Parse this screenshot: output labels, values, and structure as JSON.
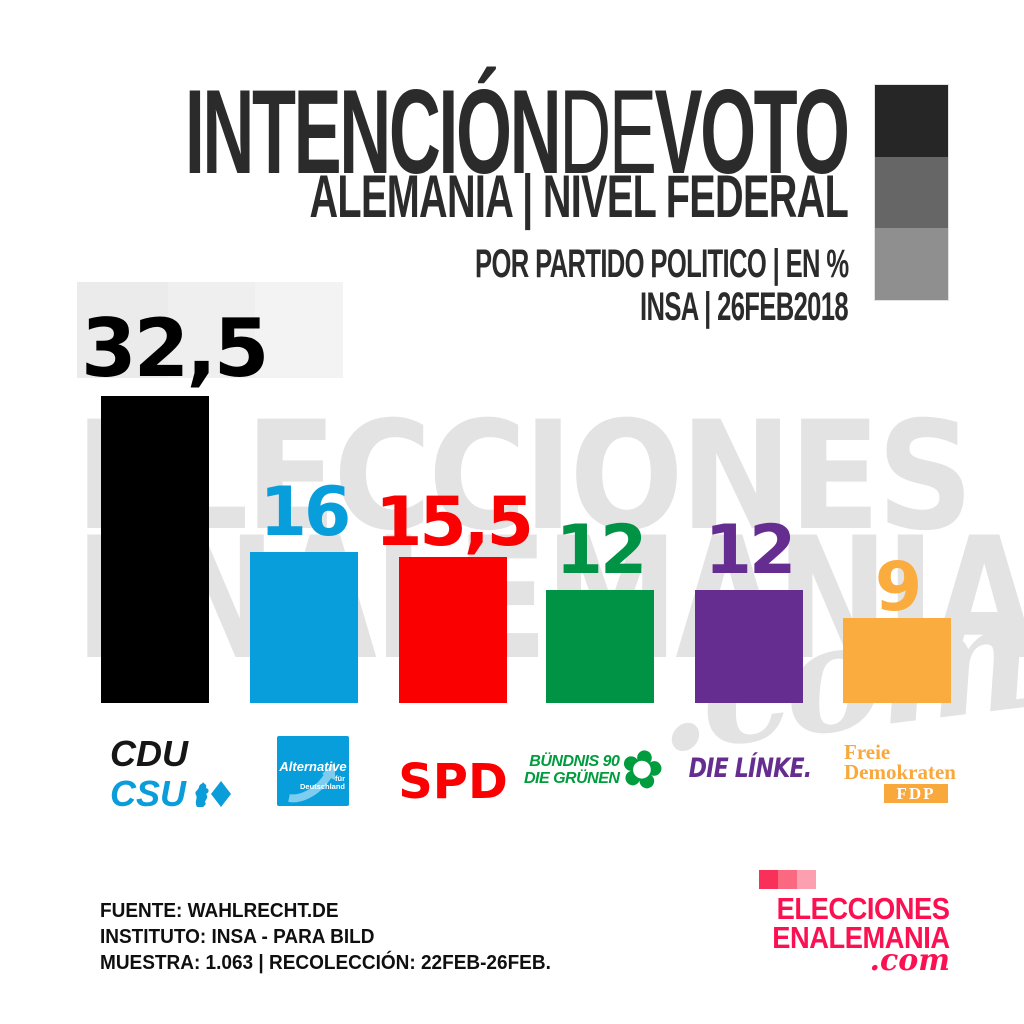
{
  "header": {
    "title_part1": "INTENCIÓN",
    "title_part2": "DE",
    "title_part3": "VOTO",
    "subtitle": "ALEMANIA | NIVEL FEDERAL",
    "meta_line1": "POR PARTIDO POLITICO | EN %",
    "meta_line2": "INSA | 26FEB2018",
    "flag_colors": {
      "top": "#262626",
      "middle": "#666666",
      "bottom": "#8f8f8f"
    }
  },
  "chart_data": {
    "type": "bar",
    "title": "INTENCIÓN DE VOTO — ALEMANIA | NIVEL FEDERAL",
    "subtitle": "POR PARTIDO POLITICO | EN % — INSA | 26FEB2018",
    "unit": "%",
    "categories": [
      "CDU/CSU",
      "AfD (Alternative für Deutschland)",
      "SPD",
      "Bündnis 90 / Die Grünen",
      "Die Linke",
      "FDP (Freie Demokraten)"
    ],
    "values": [
      32.5,
      16,
      15.5,
      12,
      12,
      9
    ],
    "value_labels": [
      "32,5",
      "16",
      "15,5",
      "12",
      "12",
      "9"
    ],
    "colors": [
      "#000000",
      "#089edb",
      "#fa0000",
      "#009245",
      "#662d91",
      "#faac3e"
    ],
    "ylim": [
      0,
      32.5
    ],
    "grid": false,
    "legend": false
  },
  "parties": [
    {
      "name": "CDU/CSU",
      "value": 32.5,
      "value_label": "32,5",
      "color": "#000000",
      "logo": {
        "line1": "CDU",
        "line2": "CSU",
        "line1_color": "#161616",
        "line2_color": "#0b9cda"
      }
    },
    {
      "name": "AfD",
      "value": 16,
      "value_label": "16",
      "color": "#089edb",
      "logo": {
        "main": "Alternative",
        "sub1": "für",
        "sub2": "Deutschland",
        "box_color": "#089edb"
      }
    },
    {
      "name": "SPD",
      "value": 15.5,
      "value_label": "15,5",
      "color": "#fa0000",
      "logo": {
        "text": "SPD",
        "color": "#fa0000"
      }
    },
    {
      "name": "Bündnis 90 / Die Grünen",
      "value": 12,
      "value_label": "12",
      "color": "#009245",
      "logo": {
        "line1": "BÜNDNIS 90",
        "line2": "DIE GRÜNEN",
        "color": "#009c3d",
        "flower": "✿"
      }
    },
    {
      "name": "Die Linke",
      "value": 12,
      "value_label": "12",
      "color": "#662d91",
      "logo": {
        "text": "DIE LÍNKE.",
        "color": "#662d91"
      }
    },
    {
      "name": "FDP",
      "value": 9,
      "value_label": "9",
      "color": "#faac3e",
      "logo": {
        "line1": "Freie",
        "line2": "Demokraten",
        "box": "FDP",
        "color": "#f9a83b"
      }
    }
  ],
  "watermark": {
    "line1": "ELECCIONES",
    "line2": "ENALEMANIA",
    "line3": ".com",
    "color": "#e3e3e3",
    "block_colors": {
      "b1": "#ebebeb",
      "b2": "#efefef",
      "b3": "#f3f3f3"
    }
  },
  "footer": {
    "line1": "FUENTE: WAHLRECHT.DE",
    "line2": "INSTITUTO: INSA - PARA BILD",
    "line3": "MUESTRA: 1.063 | RECOLECCIÓN: 22FEB-26FEB."
  },
  "brand": {
    "line1": "ELECCIONES",
    "line2": "ENALEMANIA",
    "line3": ".com",
    "text_color": "#fb1151",
    "squares": {
      "s1": "#f9305a",
      "s2": "#fa6980",
      "s3": "#fc9faf"
    }
  }
}
